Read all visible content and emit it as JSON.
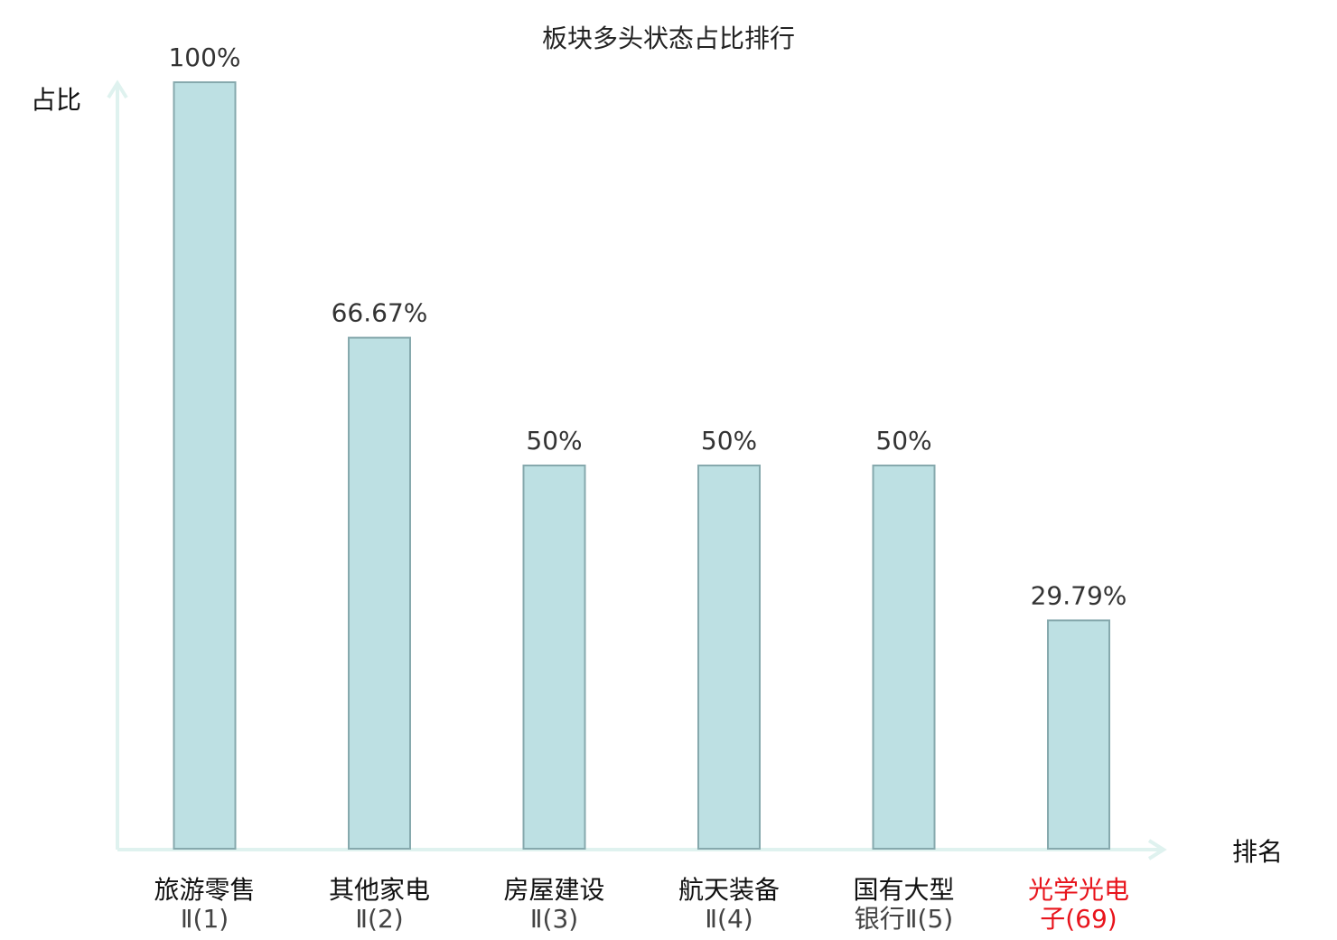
{
  "chart_data": {
    "type": "bar",
    "title": "板块多头状态占比排行",
    "xlabel": "排名",
    "ylabel": "占比",
    "ylim": [
      0,
      100
    ],
    "grid": false,
    "legend": "none",
    "categories": [
      {
        "line1": "旅游零售",
        "line2": "Ⅱ(1)",
        "highlight": false
      },
      {
        "line1": "其他家电",
        "line2": "Ⅱ(2)",
        "highlight": false
      },
      {
        "line1": "房屋建设",
        "line2": "Ⅱ(3)",
        "highlight": false
      },
      {
        "line1": "航天装备",
        "line2": "Ⅱ(4)",
        "highlight": false
      },
      {
        "line1": "国有大型",
        "line2": "银行Ⅱ(5)",
        "highlight": false
      },
      {
        "line1": "光学光电",
        "line2": "子(69)",
        "highlight": true
      }
    ],
    "values": [
      100,
      66.67,
      50,
      50,
      50,
      29.79
    ],
    "value_labels": [
      "100%",
      "66.67%",
      "50%",
      "50%",
      "50%",
      "29.79%"
    ],
    "colors": {
      "bar_fill": "#bde0e3",
      "bar_stroke": "#86a9ad",
      "axis": "#dff2ef",
      "highlight_text": "#e8141c",
      "normal_text": "#111111",
      "sub_text": "#444444"
    }
  }
}
